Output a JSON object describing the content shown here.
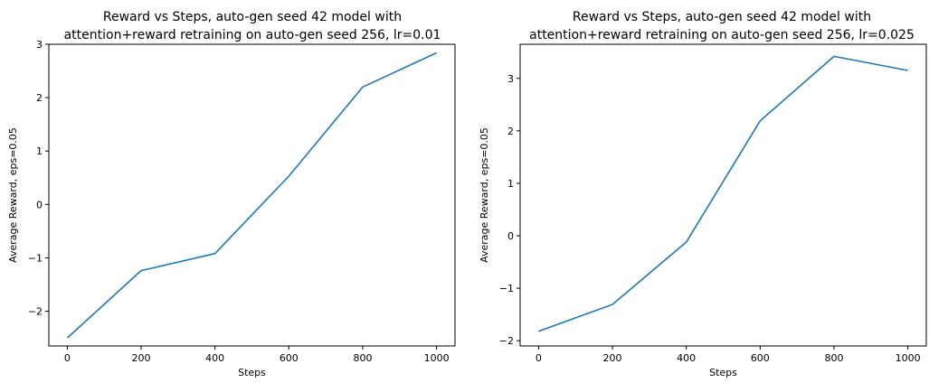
{
  "chart_data": [
    {
      "type": "line",
      "title_line1": "Reward vs Steps, auto-gen seed 42 model with",
      "title_line2": "attention+reward retraining on auto-gen seed 256, lr=0.01",
      "xlabel": "Steps",
      "ylabel": "Average Reward, eps=0.05",
      "xlim": [
        -50,
        1050
      ],
      "ylim": [
        -2.65,
        3.0
      ],
      "xticks": [
        0,
        200,
        400,
        600,
        800,
        1000
      ],
      "xtick_labels": [
        "0",
        "200",
        "400",
        "600",
        "800",
        "1000"
      ],
      "yticks": [
        -2,
        -1,
        0,
        1,
        2,
        3
      ],
      "ytick_labels": [
        "−2",
        "−1",
        "0",
        "1",
        "2",
        "3"
      ],
      "grid": false,
      "color": "#1f77b4",
      "series": [
        {
          "x": [
            0,
            200,
            400,
            600,
            800,
            1000
          ],
          "y": [
            -2.5,
            -1.24,
            -0.92,
            0.53,
            2.2,
            2.84
          ]
        }
      ]
    },
    {
      "type": "line",
      "title_line1": "Reward vs Steps, auto-gen seed 42 model with",
      "title_line2": "attention+reward retraining on auto-gen seed 256, lr=0.025",
      "xlabel": "Steps",
      "ylabel": "Average Reward, eps=0.05",
      "xlim": [
        -50,
        1050
      ],
      "ylim": [
        -2.1,
        3.65
      ],
      "xticks": [
        0,
        200,
        400,
        600,
        800,
        1000
      ],
      "xtick_labels": [
        "0",
        "200",
        "400",
        "600",
        "800",
        "1000"
      ],
      "yticks": [
        -2,
        -1,
        0,
        1,
        2,
        3
      ],
      "ytick_labels": [
        "−2",
        "−1",
        "0",
        "1",
        "2",
        "3"
      ],
      "grid": false,
      "color": "#1f77b4",
      "series": [
        {
          "x": [
            0,
            200,
            400,
            600,
            800,
            1000
          ],
          "y": [
            -1.82,
            -1.31,
            -0.12,
            2.19,
            3.42,
            3.15
          ]
        }
      ]
    }
  ]
}
